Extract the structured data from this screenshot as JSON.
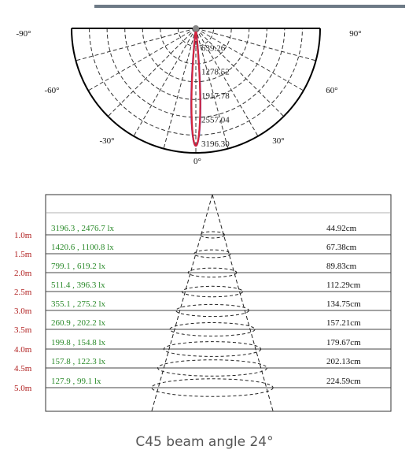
{
  "chart_data": [
    {
      "type": "polar",
      "angle_labels": [
        "-90°",
        "-60°",
        "-30°",
        "0°",
        "30°",
        "60°",
        "90°"
      ],
      "radial_tick_labels": [
        "639.26",
        "1278.52",
        "1917.78",
        "2557.04",
        "3196.30"
      ],
      "series": [
        {
          "color": "#1f2fd6",
          "half_angle_deg": 12.5,
          "max": 3196.3
        },
        {
          "color": "#d6243a",
          "half_angle_deg": 12,
          "max": 3196.3
        }
      ]
    },
    {
      "type": "table",
      "beam_angle_deg": 24,
      "distances": [
        "1.0m",
        "1.5m",
        "2.0m",
        "2.5m",
        "3.0m",
        "3.5m",
        "4.0m",
        "4.5m",
        "5.0m"
      ],
      "illuminance": [
        "3196.3 , 2476.7 lx",
        "1420.6 , 1100.8 lx",
        "799.1 , 619.2 lx",
        "511.4 , 396.3 lx",
        "355.1 , 275.2 lx",
        "260.9 , 202.2 lx",
        "199.8 , 154.8 lx",
        "157.8 , 122.3 lx",
        "127.9 , 99.1 lx"
      ],
      "diameters": [
        "44.92cm",
        "67.38cm",
        "89.83cm",
        "112.29cm",
        "134.75cm",
        "157.21cm",
        "179.67cm",
        "202.13cm",
        "224.59cm"
      ]
    }
  ],
  "caption": "C45 beam angle 24°",
  "colors": {
    "distance": "#b01e1e",
    "illuminance": "#2a8a2a",
    "text": "#111111"
  }
}
